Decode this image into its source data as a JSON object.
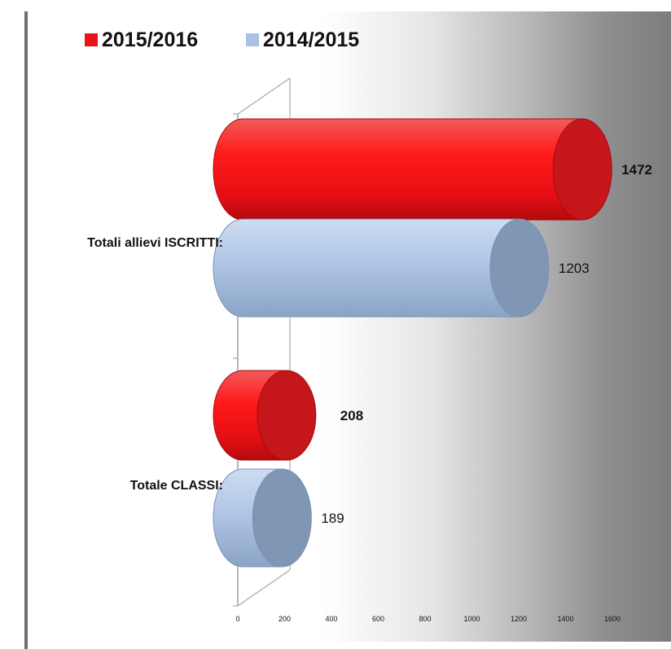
{
  "legend": {
    "items": [
      {
        "label": "2015/2016",
        "color": "#e8141a"
      },
      {
        "label": "2014/2015",
        "color": "#a9c2e4"
      }
    ]
  },
  "chart_data": {
    "type": "bar",
    "orientation": "horizontal",
    "style": "3d-cylinder",
    "categories": [
      "Totali allievi ISCRITTI:",
      "Totale CLASSI:"
    ],
    "series": [
      {
        "name": "2015/2016",
        "values": [
          1472,
          208
        ],
        "color": "#e8141a",
        "labels_bold": true
      },
      {
        "name": "2014/2015",
        "values": [
          1203,
          189
        ],
        "color": "#a9c2e4",
        "labels_bold": false
      }
    ],
    "data_labels": {
      "Totali allievi ISCRITTI:": {
        "2015/2016": "1472",
        "2014/2015": "1203"
      },
      "Totale CLASSI:": {
        "2015/2016": "208",
        "2014/2015": "189"
      }
    },
    "xlim": [
      0,
      1600
    ],
    "xticks": [
      "0",
      "200",
      "400",
      "600",
      "800",
      "1000",
      "1200",
      "1400",
      "1600"
    ],
    "legend_position": "top-left",
    "grid": false
  }
}
